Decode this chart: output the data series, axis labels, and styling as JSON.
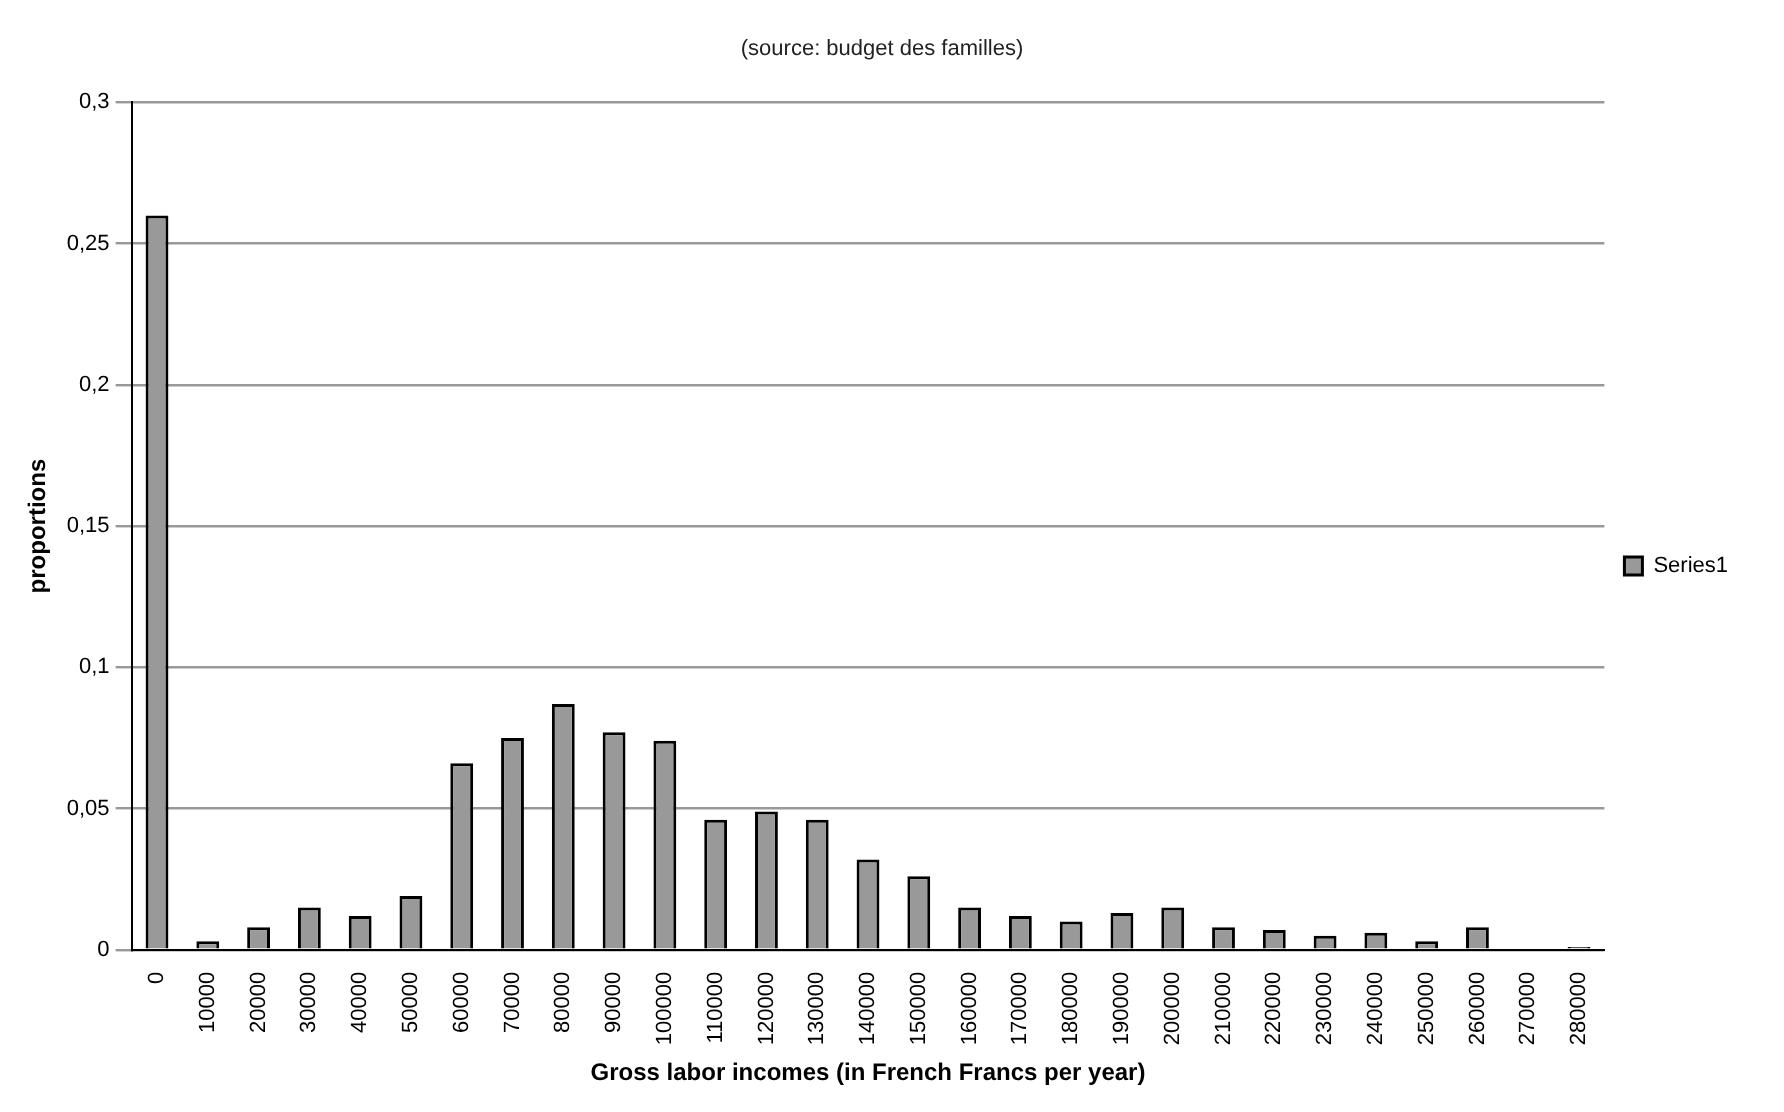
{
  "chart_data": {
    "type": "bar",
    "subtitle": "(source: budget des familles)",
    "xlabel": "Gross labor incomes (in French Francs per year)",
    "ylabel": "proportions",
    "categories": [
      "0",
      "10000",
      "20000",
      "30000",
      "40000",
      "50000",
      "60000",
      "70000",
      "80000",
      "90000",
      "100000",
      "110000",
      "120000",
      "130000",
      "140000",
      "150000",
      "160000",
      "170000",
      "180000",
      "190000",
      "200000",
      "210000",
      "220000",
      "230000",
      "240000",
      "250000",
      "260000",
      "270000",
      "280000"
    ],
    "series": [
      {
        "name": "Series1",
        "color": "#999999",
        "values": [
          0.26,
          0.003,
          0.008,
          0.015,
          0.012,
          0.019,
          0.066,
          0.075,
          0.087,
          0.077,
          0.074,
          0.046,
          0.049,
          0.046,
          0.032,
          0.026,
          0.015,
          0.012,
          0.01,
          0.013,
          0.015,
          0.008,
          0.007,
          0.005,
          0.006,
          0.003,
          0.008,
          0.0005,
          0.001
        ]
      }
    ],
    "ylim": [
      0,
      0.3
    ],
    "yticks": [
      {
        "value": 0,
        "label": "0"
      },
      {
        "value": 0.05,
        "label": "0,05"
      },
      {
        "value": 0.1,
        "label": "0,1"
      },
      {
        "value": 0.15,
        "label": "0,15"
      },
      {
        "value": 0.2,
        "label": "0,2"
      },
      {
        "value": 0.25,
        "label": "0,25"
      },
      {
        "value": 0.3,
        "label": "0,3"
      }
    ],
    "grid": "y",
    "legend": "right"
  }
}
